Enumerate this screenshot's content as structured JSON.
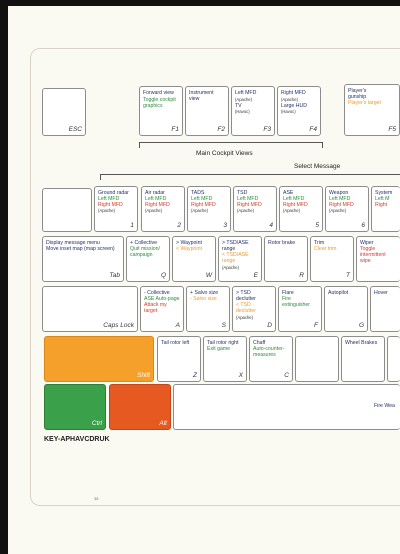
{
  "section_titles": {
    "main_cockpit_views": "Main Cockpit Views",
    "select_message": "Select Message"
  },
  "footer": {
    "key_code": "KEY-APHAVCDRUK",
    "page_number": "38"
  },
  "colors": {
    "shift_key": "#f5a02a",
    "ctrl_key": "#3aa04a",
    "alt_key": "#e65a22"
  },
  "keys": {
    "esc": {
      "name": "ESC"
    },
    "f1": {
      "name": "F1",
      "line1": "Forward view",
      "line2": "Toggle cockpit",
      "line3": "graphics"
    },
    "f2": {
      "name": "F2",
      "line1": "Instrument",
      "line2": "view"
    },
    "f3": {
      "name": "F3",
      "line1": "Left MFD",
      "line2": "(Apache)",
      "line3": "TV",
      "line4": "(Havoc)"
    },
    "f4": {
      "name": "F4",
      "line1": "Right MFD",
      "line2": "(Apache)",
      "line3": "Large HUD",
      "line4": "(Havoc)"
    },
    "f5": {
      "name": "F5",
      "line1": "Player's",
      "line2": "gunship",
      "line3": "Player's target"
    },
    "k1": {
      "name": "1",
      "line1": "Ground radar",
      "line2": "Left MFD",
      "line3": "Right MFD",
      "line4": "(Apache)"
    },
    "k2": {
      "name": "2",
      "line1": "Air radar",
      "line2": "Left MFD",
      "line3": "Right MFD",
      "line4": "(Apache)"
    },
    "k3": {
      "name": "3",
      "line1": "TADS",
      "line2": "Left MFD",
      "line3": "Right MFD",
      "line4": "(Apache)"
    },
    "k4": {
      "name": "4",
      "line1": "TSD",
      "line2": "Left MFD",
      "line3": "Right MFD",
      "line4": "(Apache)"
    },
    "k5": {
      "name": "5",
      "line1": "ASE",
      "line2": "Left MFD",
      "line3": "Right MFD",
      "line4": "(Apache)"
    },
    "k6": {
      "name": "6",
      "line1": "Weapon",
      "line2": "Left MFD",
      "line3": "Right MFD",
      "line4": "(Apache)"
    },
    "k7": {
      "name": "",
      "line1": "System",
      "line2": "Left M",
      "line3": "Right"
    },
    "tab": {
      "name": "Tab",
      "line1": "Display message menu",
      "line2": "Move inset map (map screen)"
    },
    "q": {
      "name": "Q",
      "line1": "+ Collective",
      "line2": "Quit mission/",
      "line3": "campaign"
    },
    "w": {
      "name": "W",
      "line1": "> Waypoint",
      "line2": "< Waypoint"
    },
    "e": {
      "name": "E",
      "line1": "> TSD/ASE",
      "line2": "range",
      "line3": "< TSD/ASE",
      "line4": "range",
      "line5": "(Apache)"
    },
    "r": {
      "name": "R",
      "line1": "Rotor brake"
    },
    "t": {
      "name": "T",
      "line1": "Trim",
      "line2": "Clear trim"
    },
    "y": {
      "name": "",
      "line1": "Wiper",
      "line2": "Toggle",
      "line3": "intermittent",
      "line4": "wipe"
    },
    "caps": {
      "name": "Caps Lock"
    },
    "a": {
      "name": "A",
      "line1": "- Collective",
      "line2": "ASE Auto-page",
      "line3": "Attack my",
      "line4": "target"
    },
    "s": {
      "name": "S",
      "line1": "+ Salvo size",
      "line2": "- Salvo size"
    },
    "d": {
      "name": "D",
      "line1": "> TSD",
      "line2": "declutter",
      "line3": "< TSD",
      "line4": "declutter",
      "line5": "(Apache)"
    },
    "f": {
      "name": "F",
      "line1": "Flare",
      "line2": "Fire",
      "line3": "extinguisher"
    },
    "g": {
      "name": "G",
      "line1": "Autopilot"
    },
    "h": {
      "name": "",
      "line1": "Hover"
    },
    "shift": {
      "name": "Shift"
    },
    "z": {
      "name": "Z",
      "line1": "Tail rotor left"
    },
    "x": {
      "name": "X",
      "line1": "Tail rotor right",
      "line2": "Exit game"
    },
    "c": {
      "name": "C",
      "line1": "Chaff",
      "line2": "Auto-counter-",
      "line3": "measures"
    },
    "v": {
      "name": ""
    },
    "b": {
      "name": "",
      "line1": "Wheel Brakes"
    },
    "n": {
      "name": ""
    },
    "ctrl": {
      "name": "Ctrl"
    },
    "alt": {
      "name": "Alt"
    },
    "space": {
      "name": "",
      "line1": "Fire Wea"
    }
  }
}
